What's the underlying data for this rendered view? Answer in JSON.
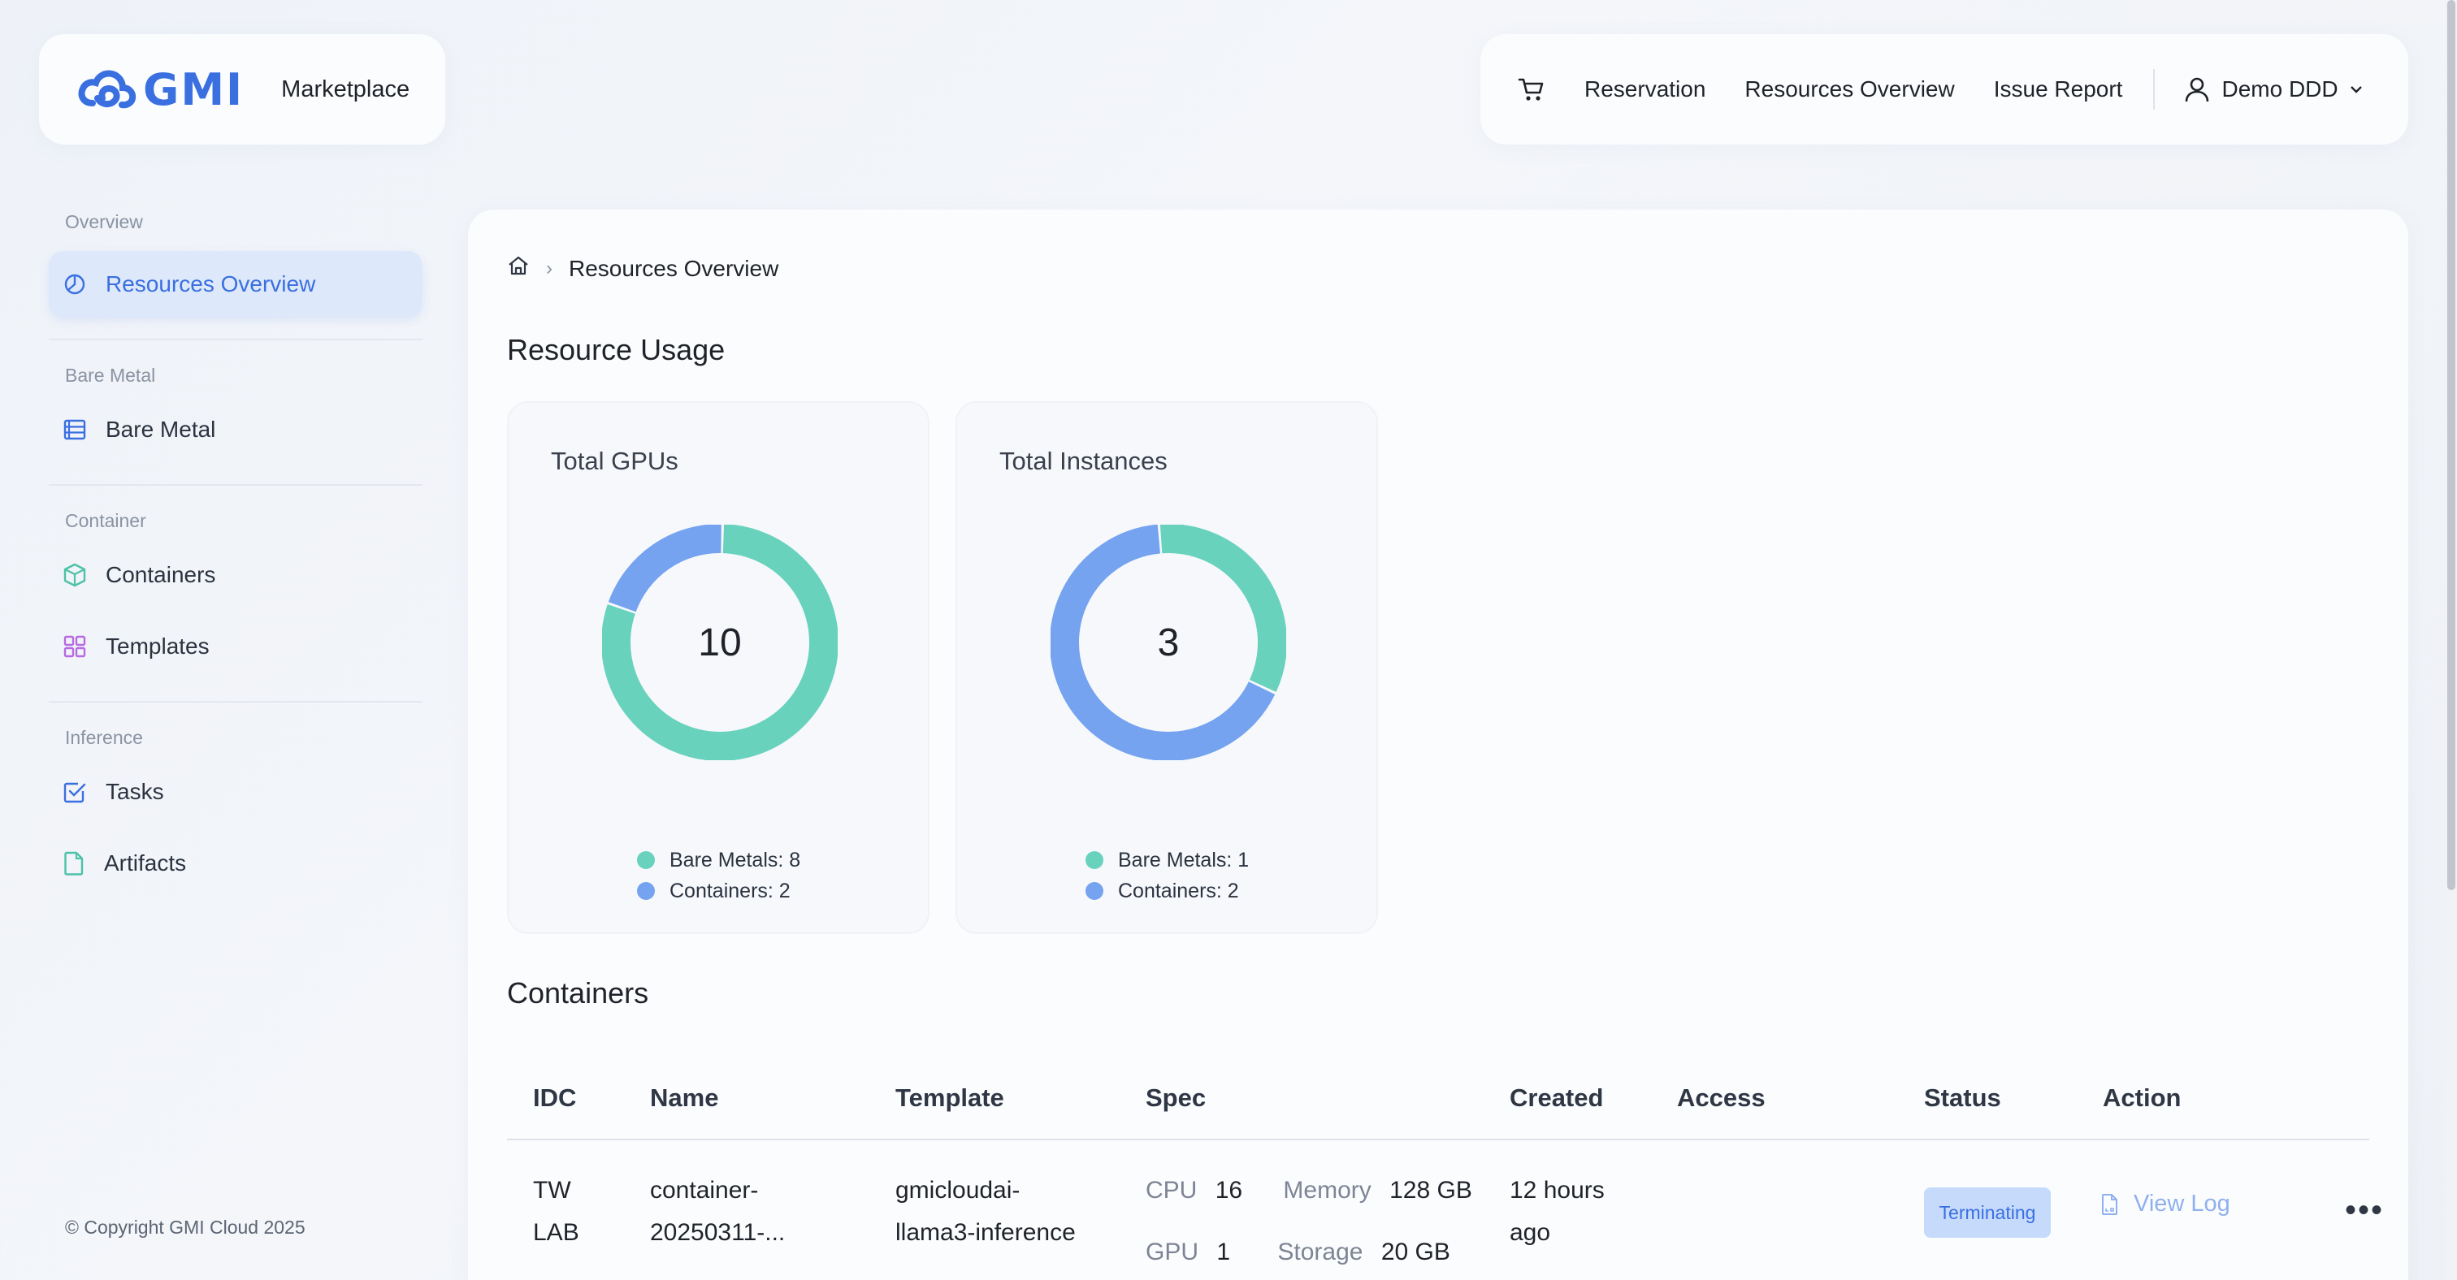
{
  "header": {
    "logo_text": "GMI",
    "marketplace": "Marketplace",
    "nav": {
      "reservation": "Reservation",
      "resources_overview": "Resources Overview",
      "issue_report": "Issue Report"
    },
    "user": "Demo DDD"
  },
  "sidebar": {
    "sections": {
      "overview": "Overview",
      "bare_metal": "Bare Metal",
      "container": "Container",
      "inference": "Inference"
    },
    "items": {
      "resources_overview": "Resources Overview",
      "bare_metal": "Bare Metal",
      "containers": "Containers",
      "templates": "Templates",
      "tasks": "Tasks",
      "artifacts": "Artifacts"
    },
    "copyright": "© Copyright GMI Cloud 2025"
  },
  "breadcrumb": {
    "current": "Resources Overview"
  },
  "resource_usage": {
    "title": "Resource Usage",
    "gpus": {
      "title": "Total GPUs",
      "total": "10",
      "bare_metals": "Bare Metals: 8",
      "containers": "Containers: 2",
      "values": {
        "bare_metals": 8,
        "containers": 2
      }
    },
    "instances": {
      "title": "Total Instances",
      "total": "3",
      "bare_metals": "Bare Metals: 1",
      "containers": "Containers: 2",
      "values": {
        "bare_metals": 1,
        "containers": 2
      }
    },
    "colors": {
      "bare_metals": "#68d2bd",
      "containers": "#75a3f0"
    }
  },
  "containers": {
    "title": "Containers",
    "columns": [
      "IDC",
      "Name",
      "Template",
      "Spec",
      "Created",
      "Access",
      "Status",
      "Action"
    ],
    "rows": [
      {
        "idc_1": "TW",
        "idc_2": "LAB",
        "name_1": "container-",
        "name_2": "20250311-...",
        "template_1": "gmicloudai-",
        "template_2": "llama3-inference",
        "cpu_label": "CPU",
        "cpu": "16",
        "memory_label": "Memory",
        "memory": "128 GB",
        "gpu_label": "GPU",
        "gpu": "1",
        "storage_label": "Storage",
        "storage": "20 GB",
        "created_1": "12 hours",
        "created_2": "ago",
        "status": "Terminating",
        "view_log": "View Log",
        "more": "•••"
      }
    ]
  }
}
